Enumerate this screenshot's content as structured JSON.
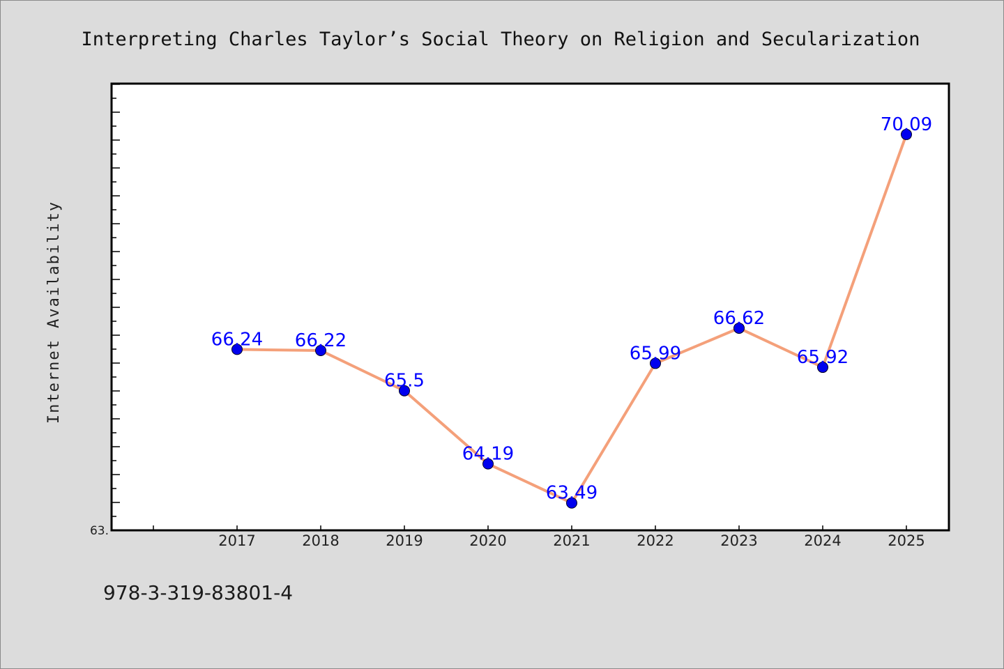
{
  "chart_data": {
    "type": "line",
    "title": "Interpreting Charles Taylor’s Social Theory on Religion and Secularization",
    "xlabel": "",
    "ylabel": "Internet Availability",
    "categories": [
      "2017",
      "2018",
      "2019",
      "2020",
      "2021",
      "2022",
      "2023",
      "2024",
      "2025"
    ],
    "values": [
      66.24,
      66.22,
      65.5,
      64.19,
      63.49,
      65.99,
      66.62,
      65.92,
      70.09
    ],
    "data_labels": [
      "66.24",
      "66.22",
      "65.5",
      "64.19",
      "63.49",
      "65.99",
      "66.62",
      "65.92",
      "70.09"
    ],
    "y_tick_label": "63.",
    "ylim": [
      63.0,
      71.0
    ],
    "grid": false,
    "legend": "none",
    "colors": {
      "line": "#f4a07a",
      "marker": "#0000ee",
      "label": "#0000ff",
      "background": "#dcdcdc",
      "plot_area": "#ffffff"
    }
  },
  "footer": {
    "isbn": "978-3-319-83801-4"
  }
}
